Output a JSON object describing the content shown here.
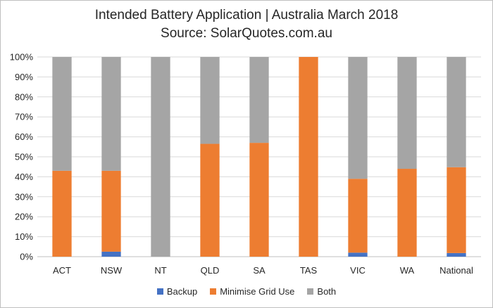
{
  "chart_data": {
    "type": "bar",
    "stacked": true,
    "title": "Intended Battery Application | Australia March 2018",
    "subtitle": "Source: SolarQuotes.com.au",
    "categories": [
      "ACT",
      "NSW",
      "NT",
      "QLD",
      "SA",
      "TAS",
      "VIC",
      "WA",
      "National"
    ],
    "series": [
      {
        "name": "Backup",
        "color": "#4472c4",
        "values": [
          0,
          2.5,
          0,
          0,
          0,
          0,
          2,
          0,
          1.8
        ]
      },
      {
        "name": "Minimise Grid Use",
        "color": "#ed7d31",
        "values": [
          43,
          40.5,
          0,
          56.5,
          57,
          100,
          37,
          44,
          43
        ]
      },
      {
        "name": "Both",
        "color": "#a5a5a5",
        "values": [
          57,
          57,
          100,
          43.5,
          43,
          0,
          61,
          56,
          55.2
        ]
      }
    ],
    "yticks": [
      "0%",
      "10%",
      "20%",
      "30%",
      "40%",
      "50%",
      "60%",
      "70%",
      "80%",
      "90%",
      "100%"
    ],
    "ylim": [
      0,
      100
    ],
    "grid": true,
    "legend_position": "bottom"
  }
}
